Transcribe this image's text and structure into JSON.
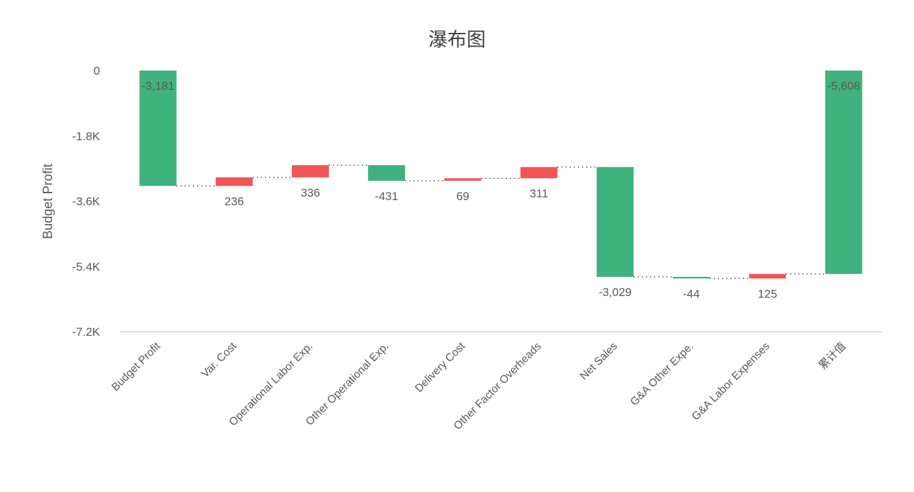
{
  "chart_data": {
    "type": "waterfall",
    "title": "瀑布图",
    "xlabel": "",
    "ylabel": "Budget Profit",
    "ylim": [
      -7200,
      0
    ],
    "yticks": [
      0,
      -1800,
      -3600,
      -5400,
      -7200
    ],
    "ytick_labels": [
      "0",
      "-1.8K",
      "-3.6K",
      "-5.4K",
      "-7.2K"
    ],
    "grid": false,
    "legend": null,
    "categories": [
      "Budget Profit",
      "Var. Cost",
      "Operational Labor Exp.",
      "Other Operational Exp.",
      "Delivery Cost",
      "Other Factor Overheads",
      "Net Sales",
      "G&A Other Expe.",
      "G&A Labor Expenses",
      "累计值"
    ],
    "values": [
      -3181,
      236,
      336,
      -431,
      69,
      311,
      -3029,
      -44,
      125,
      -5608
    ],
    "data_labels": [
      "-3,181",
      "236",
      "336",
      "-431",
      "69",
      "311",
      "-3,029",
      "-44",
      "125",
      "-5,608"
    ],
    "is_total": [
      true,
      false,
      false,
      false,
      false,
      false,
      false,
      false,
      false,
      true
    ],
    "colors": {
      "increase": "#F15556",
      "decrease": "#40B27D",
      "total": "#40B27D",
      "connector": "#404040",
      "axis": "#D0D0D0",
      "text": "#595959"
    }
  }
}
